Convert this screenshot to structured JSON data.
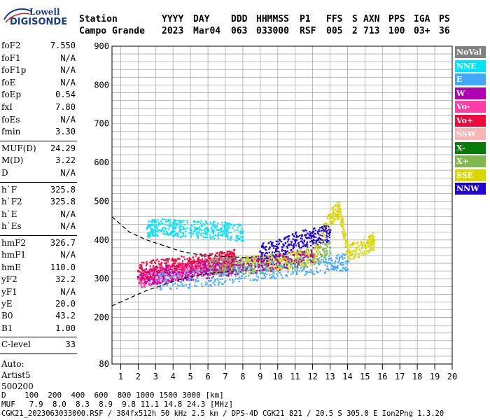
{
  "header": {
    "row1": [
      "Station",
      "YYYY",
      "DAY",
      "DDD",
      "HHMMSS",
      "P1",
      "FFS",
      "S",
      "AXN",
      "PPS",
      "IGA",
      "PS"
    ],
    "row2": [
      "Campo Grande",
      "2023",
      "Mar04",
      "063",
      "033000",
      "RSF",
      "005",
      "2",
      "713",
      "100",
      "03+",
      "36"
    ]
  },
  "logo": {
    "line1": "Lowell",
    "line2": "DIGISONDE"
  },
  "params_group1": [
    {
      "k": "foF2",
      "v": "7.550"
    },
    {
      "k": "foF1",
      "v": "N/A"
    },
    {
      "k": "foF1p",
      "v": "N/A"
    },
    {
      "k": "foE",
      "v": "N/A"
    },
    {
      "k": "foEp",
      "v": "0.54"
    },
    {
      "k": "fxI",
      "v": "7.80"
    },
    {
      "k": "foEs",
      "v": "N/A"
    },
    {
      "k": "fmin",
      "v": "3.30"
    }
  ],
  "params_group2": [
    {
      "k": "MUF(D)",
      "v": "24.29"
    },
    {
      "k": "M(D)",
      "v": "3.22"
    },
    {
      "k": "D",
      "v": "N/A"
    }
  ],
  "params_group3": [
    {
      "k": "h`F",
      "v": "325.8"
    },
    {
      "k": "h`F2",
      "v": "325.8"
    },
    {
      "k": "h`E",
      "v": "N/A"
    },
    {
      "k": "h`Es",
      "v": "N/A"
    }
  ],
  "params_group4": [
    {
      "k": "hmF2",
      "v": "326.7"
    },
    {
      "k": "hmF1",
      "v": "N/A"
    },
    {
      "k": "hmE",
      "v": "110.0"
    },
    {
      "k": "yF2",
      "v": "32.2"
    },
    {
      "k": "yF1",
      "v": "N/A"
    },
    {
      "k": "yE",
      "v": "20.0"
    },
    {
      "k": "B0",
      "v": "43.2"
    },
    {
      "k": "B1",
      "v": "1.00"
    }
  ],
  "clevel": {
    "k": "C-level",
    "v": "33"
  },
  "auto": [
    "Auto:",
    "Artist5",
    "500200"
  ],
  "footer": {
    "d_row": "D    100  200  400  600  800 1000 1500 3000 [km]",
    "muf_row": "MUF   7.9  8.0  8.3  8.9  9.8 11.1 14.8 24.3 [MHz]",
    "file_row": "CGK21_2023063033000.RSF / 384fx512h 50 kHz 2.5 km / DPS-4D CGK21 821 / 20.5 S 305.0 E Ion2Png 1.3.20"
  },
  "legend": [
    {
      "label": "NoVal",
      "color": "#808080"
    },
    {
      "label": "NNE",
      "color": "#00e5ff"
    },
    {
      "label": "E",
      "color": "#40a8ff"
    },
    {
      "label": "W",
      "color": "#b000b0"
    },
    {
      "label": "Vo-",
      "color": "#ff3ca8"
    },
    {
      "label": "Vo+",
      "color": "#ee0a3c"
    },
    {
      "label": "SSW",
      "color": "#ffb4b4"
    },
    {
      "label": "X-",
      "color": "#0a7a0a"
    },
    {
      "label": "X+",
      "color": "#80b850"
    },
    {
      "label": "SSE",
      "color": "#d8d800"
    },
    {
      "label": "NNW",
      "color": "#2000d8"
    }
  ],
  "chart_data": {
    "type": "scatter",
    "title": "",
    "xlabel": "",
    "ylabel": "",
    "xlim": [
      0.5,
      20
    ],
    "ylim": [
      80,
      900
    ],
    "xticks": [
      1,
      2,
      3,
      4,
      5,
      6,
      7,
      8,
      9,
      10,
      11,
      12,
      13,
      14,
      15,
      16,
      17,
      18,
      19,
      20
    ],
    "yticks": [
      80,
      200,
      300,
      400,
      500,
      600,
      700,
      800,
      900
    ],
    "grid": true,
    "legend_position": "right",
    "series": [
      {
        "name": "Vo-",
        "x": [
          2.0,
          2.5,
          3.0,
          3.5,
          4.0,
          4.5,
          5.0,
          5.5,
          6.0,
          6.5,
          7.0,
          7.5
        ],
        "y": [
          300,
          305,
          310,
          315,
          318,
          322,
          326,
          330,
          333,
          336,
          340,
          345
        ]
      },
      {
        "name": "Vo+",
        "x": [
          2.0,
          3.0,
          4.0,
          5.0,
          6.0,
          7.0,
          7.5
        ],
        "y": [
          320,
          330,
          335,
          340,
          345,
          350,
          355
        ]
      },
      {
        "name": "X+",
        "x": [
          6,
          7,
          8,
          9,
          10,
          11,
          12,
          13
        ],
        "y": [
          330,
          335,
          335,
          340,
          345,
          350,
          360,
          380
        ]
      },
      {
        "name": "SSE",
        "x": [
          8,
          9,
          10,
          11,
          12,
          13,
          13.5,
          14,
          15,
          15.5
        ],
        "y": [
          335,
          340,
          345,
          350,
          360,
          460,
          480,
          370,
          385,
          400
        ]
      },
      {
        "name": "NNW",
        "x": [
          9,
          10,
          11,
          12,
          13
        ],
        "y": [
          370,
          380,
          400,
          410,
          420
        ]
      },
      {
        "name": "NNE",
        "x": [
          2.5,
          3,
          4,
          5,
          6,
          7,
          8
        ],
        "y": [
          430,
          435,
          432,
          430,
          428,
          425,
          420
        ]
      },
      {
        "name": "E",
        "x": [
          3,
          5,
          7,
          9,
          11,
          13,
          14
        ],
        "y": [
          295,
          300,
          310,
          320,
          330,
          340,
          345
        ]
      },
      {
        "name": "W",
        "x": [
          2,
          4,
          6,
          8,
          10,
          12
        ],
        "y": [
          305,
          315,
          325,
          335,
          345,
          360
        ]
      }
    ],
    "model_curves": [
      {
        "name": "upper",
        "x": [
          0.5,
          1.5,
          2.5,
          3.5,
          4.5,
          5.5,
          6.5,
          7.5,
          8.5
        ],
        "y": [
          460,
          420,
          400,
          385,
          370,
          362,
          358,
          356,
          355
        ]
      },
      {
        "name": "lower",
        "x": [
          0.5,
          1.5,
          2.5,
          3.5,
          4.5,
          5.5,
          6.5,
          7.5
        ],
        "y": [
          230,
          250,
          270,
          285,
          300,
          310,
          316,
          320
        ]
      }
    ]
  }
}
